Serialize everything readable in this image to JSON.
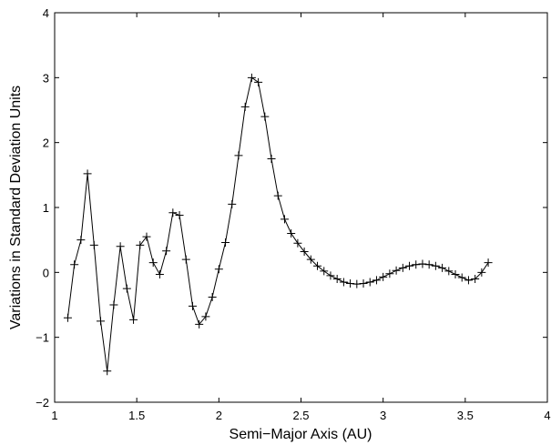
{
  "chart_data": {
    "type": "line",
    "title": "",
    "xlabel": "Semi−Major Axis (AU)",
    "ylabel": "Variations in Standard Deviation Units",
    "xlim": [
      1,
      4
    ],
    "ylim": [
      -2,
      4
    ],
    "xticks": [
      1,
      1.5,
      2,
      2.5,
      3,
      3.5,
      4
    ],
    "xtick_labels": [
      "1",
      "1.5",
      "2",
      "2.5",
      "3",
      "3.5",
      "4"
    ],
    "yticks": [
      -2,
      -1,
      0,
      1,
      2,
      3,
      4
    ],
    "ytick_labels": [
      "−2",
      "−1",
      "0",
      "1",
      "2",
      "3",
      "4"
    ],
    "grid": false,
    "marker": "+",
    "line_color": "#000000",
    "series": [
      {
        "x": [
          1.08,
          1.12,
          1.16,
          1.2,
          1.24,
          1.28,
          1.32,
          1.36,
          1.4,
          1.44,
          1.48,
          1.52,
          1.56,
          1.6,
          1.64,
          1.68,
          1.72,
          1.76,
          1.8,
          1.84,
          1.88,
          1.92,
          1.96,
          2.0,
          2.04,
          2.08,
          2.12,
          2.16,
          2.2,
          2.24,
          2.28,
          2.32,
          2.36,
          2.4,
          2.44,
          2.48,
          2.52,
          2.56,
          2.6,
          2.64,
          2.68,
          2.72,
          2.76,
          2.8,
          2.84,
          2.88,
          2.92,
          2.96,
          3.0,
          3.04,
          3.08,
          3.12,
          3.16,
          3.2,
          3.24,
          3.28,
          3.32,
          3.36,
          3.4,
          3.44,
          3.48,
          3.52,
          3.56,
          3.6,
          3.64
        ],
        "y": [
          -0.7,
          0.12,
          0.5,
          1.52,
          0.42,
          -0.75,
          -1.52,
          -0.5,
          0.4,
          -0.25,
          -0.73,
          0.42,
          0.55,
          0.15,
          -0.03,
          0.33,
          0.92,
          0.88,
          0.2,
          -0.52,
          -0.8,
          -0.68,
          -0.38,
          0.05,
          0.46,
          1.05,
          1.8,
          2.55,
          3.0,
          2.93,
          2.4,
          1.75,
          1.18,
          0.82,
          0.6,
          0.45,
          0.32,
          0.2,
          0.1,
          0.02,
          -0.05,
          -0.1,
          -0.15,
          -0.17,
          -0.18,
          -0.17,
          -0.15,
          -0.12,
          -0.07,
          -0.02,
          0.03,
          0.07,
          0.1,
          0.12,
          0.13,
          0.12,
          0.1,
          0.07,
          0.02,
          -0.03,
          -0.08,
          -0.12,
          -0.1,
          0.0,
          0.15
        ]
      }
    ]
  }
}
